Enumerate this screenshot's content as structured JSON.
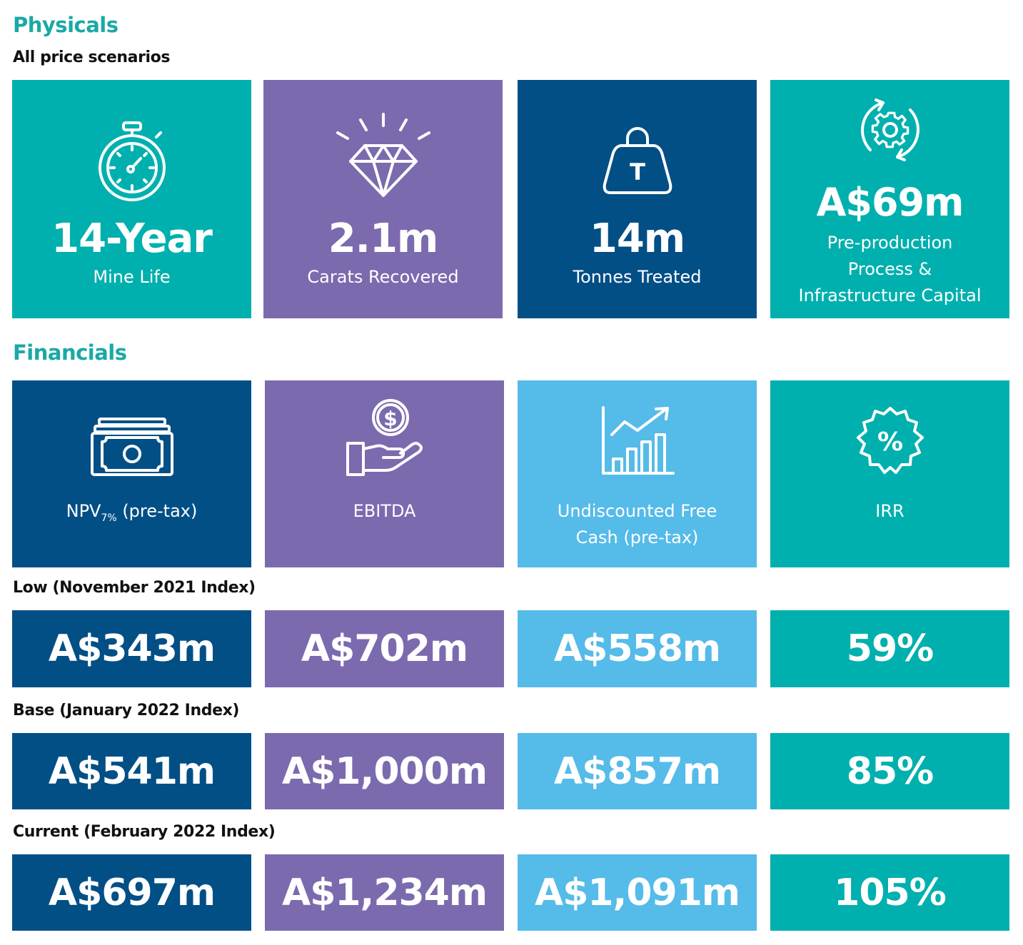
{
  "physicals": {
    "heading": "Physicals",
    "subheading": "All price scenarios",
    "tiles": [
      {
        "icon": "stopwatch-icon",
        "value": "14-Year",
        "label": "Mine Life",
        "color": "#00b0ae"
      },
      {
        "icon": "diamond-icon",
        "value": "2.1m",
        "label": "Carats Recovered",
        "color": "#7c6aaf"
      },
      {
        "icon": "tonne-weight-icon",
        "icon_text": "T",
        "value": "14m",
        "label": "Tonnes Treated",
        "color": "#024f86"
      },
      {
        "icon": "gear-cycle-icon",
        "value": "A$69m",
        "label_lines": [
          "Pre-production",
          "Process &",
          "Infrastructure Capital"
        ],
        "color": "#00b0ae"
      }
    ]
  },
  "financials": {
    "heading": "Financials",
    "metrics": [
      {
        "icon": "banknote-icon",
        "label": "NPV",
        "label_sub": "7%",
        "label_suffix": " (pre-tax)",
        "color": "#024f86"
      },
      {
        "icon": "coin-hand-icon",
        "icon_text": "$",
        "label": "EBITDA",
        "color": "#7c6aaf"
      },
      {
        "icon": "growth-chart-icon",
        "label_lines": [
          "Undiscounted Free",
          "Cash (pre-tax)"
        ],
        "color": "#55bbe9"
      },
      {
        "icon": "percent-badge-icon",
        "icon_text": "%",
        "label": "IRR",
        "color": "#00b0ae"
      }
    ],
    "scenarios": [
      {
        "name": "Low (November 2021 Index)",
        "values": [
          "A$343m",
          "A$702m",
          "A$558m",
          "59%"
        ]
      },
      {
        "name": "Base (January 2022 Index)",
        "values": [
          "A$541m",
          "A$1,000m",
          "A$857m",
          "85%"
        ]
      },
      {
        "name": "Current (February 2022 Index)",
        "values": [
          "A$697m",
          "A$1,234m",
          "A$1,091m",
          "105%"
        ]
      }
    ]
  }
}
